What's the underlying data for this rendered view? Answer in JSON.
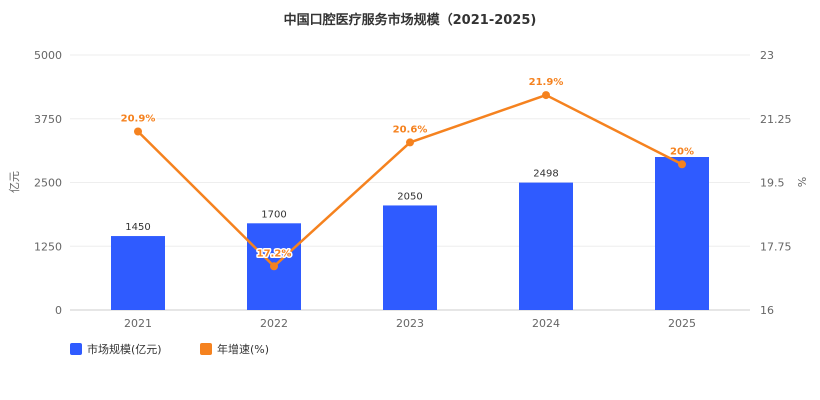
{
  "chart_data": {
    "type": "bar",
    "title": "中国口腔医疗服务市场规模（2021-2025)",
    "categories": [
      "2021",
      "2022",
      "2023",
      "2024",
      "2025"
    ],
    "series": [
      {
        "name": "市场规模(亿元)",
        "type": "bar",
        "axis": "left",
        "color": "#2f5bff",
        "values": [
          1450,
          1700,
          2050,
          2498,
          3000
        ],
        "labels": [
          "1450",
          "1700",
          "2050",
          "2498",
          ""
        ]
      },
      {
        "name": "年增速(%)",
        "type": "line",
        "axis": "right",
        "color": "#f5821f",
        "values": [
          20.9,
          17.2,
          20.6,
          21.9,
          20.0
        ],
        "labels": [
          "20.9%",
          "17.2%",
          "20.6%",
          "21.9%",
          "20%"
        ]
      }
    ],
    "y_left": {
      "label": "亿元",
      "min": 0,
      "max": 5000,
      "ticks": [
        "0",
        "1250",
        "2500",
        "3750",
        "5000"
      ]
    },
    "y_right": {
      "label": "%",
      "min": 16,
      "max": 23,
      "ticks": [
        "16",
        "17.75",
        "19.5",
        "21.25",
        "23"
      ]
    },
    "grid": true,
    "legend": "bottom-left"
  }
}
